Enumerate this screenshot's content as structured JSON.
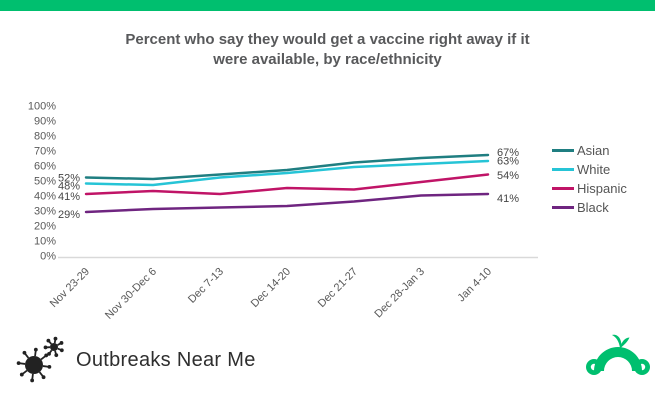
{
  "top_bar": {
    "color": "#00BF6F"
  },
  "title_lines": [
    "Percent who say they would get a vaccine right away if it",
    "were available, by race/ethnicity"
  ],
  "chart_data": {
    "type": "line",
    "title": "Percent who say they would get a vaccine right away if it were available, by race/ethnicity",
    "categories": [
      "Nov 23-29",
      "Nov 30-Dec 6",
      "Dec 7-13",
      "Dec 14-20",
      "Dec 21-27",
      "Dec 28-Jan 3",
      "Jan 4-10"
    ],
    "y_tick_labels": [
      "0%",
      "10%",
      "20%",
      "30%",
      "40%",
      "50%",
      "60%",
      "70%",
      "80%",
      "90%",
      "100%"
    ],
    "ylim": [
      0,
      100
    ],
    "grid": false,
    "legend_position": "right",
    "series": [
      {
        "name": "Asian",
        "color": "#1F7E81",
        "values": [
          52,
          51,
          54,
          57,
          62,
          65,
          67
        ],
        "first_label": "52%",
        "last_label": "67%"
      },
      {
        "name": "White",
        "color": "#26C4D6",
        "values": [
          48,
          47,
          52,
          55,
          59,
          61,
          63
        ],
        "first_label": "48%",
        "last_label": "63%"
      },
      {
        "name": "Hispanic",
        "color": "#C01467",
        "values": [
          41,
          43,
          41,
          45,
          44,
          49,
          54
        ],
        "first_label": "41%",
        "last_label": "54%"
      },
      {
        "name": "Black",
        "color": "#6F2580",
        "values": [
          29,
          31,
          32,
          33,
          36,
          40,
          41
        ],
        "first_label": "29%",
        "last_label": "41%"
      }
    ]
  },
  "footer": {
    "brand": "Outbreaks Near Me"
  },
  "icons": {
    "left": "virus-icon",
    "right": "surveymonkey-monkey-logo",
    "virus_color": "#222222",
    "monkey_color": "#00BF6F"
  }
}
